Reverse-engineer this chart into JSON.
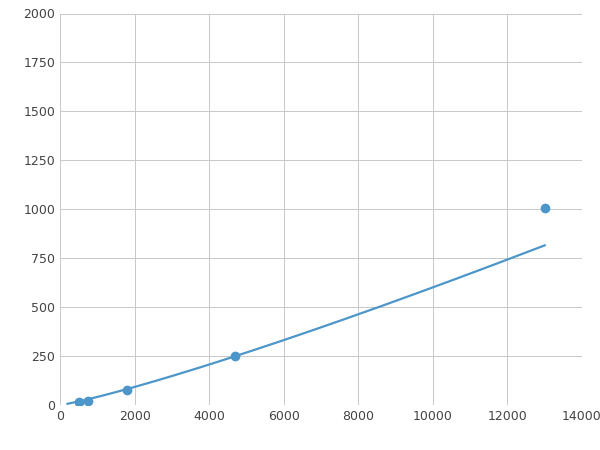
{
  "x": [
    200,
    500,
    750,
    1800,
    4700,
    13000
  ],
  "y": [
    10,
    15,
    20,
    75,
    250,
    1005
  ],
  "marker_x": [
    500,
    750,
    1800,
    4700,
    13000
  ],
  "marker_y": [
    15,
    20,
    75,
    250,
    1005
  ],
  "line_color": "#4d96c9",
  "marker_color": "#4d96c9",
  "marker_size": 6,
  "line_width": 1.6,
  "xlim": [
    0,
    14000
  ],
  "ylim": [
    0,
    2000
  ],
  "xticks": [
    0,
    2000,
    4000,
    6000,
    8000,
    10000,
    12000,
    14000
  ],
  "yticks": [
    0,
    250,
    500,
    750,
    1000,
    1250,
    1500,
    1750,
    2000
  ],
  "grid_color": "#c8c8c8",
  "background_color": "#ffffff",
  "figsize": [
    6.0,
    4.5
  ],
  "dpi": 100
}
